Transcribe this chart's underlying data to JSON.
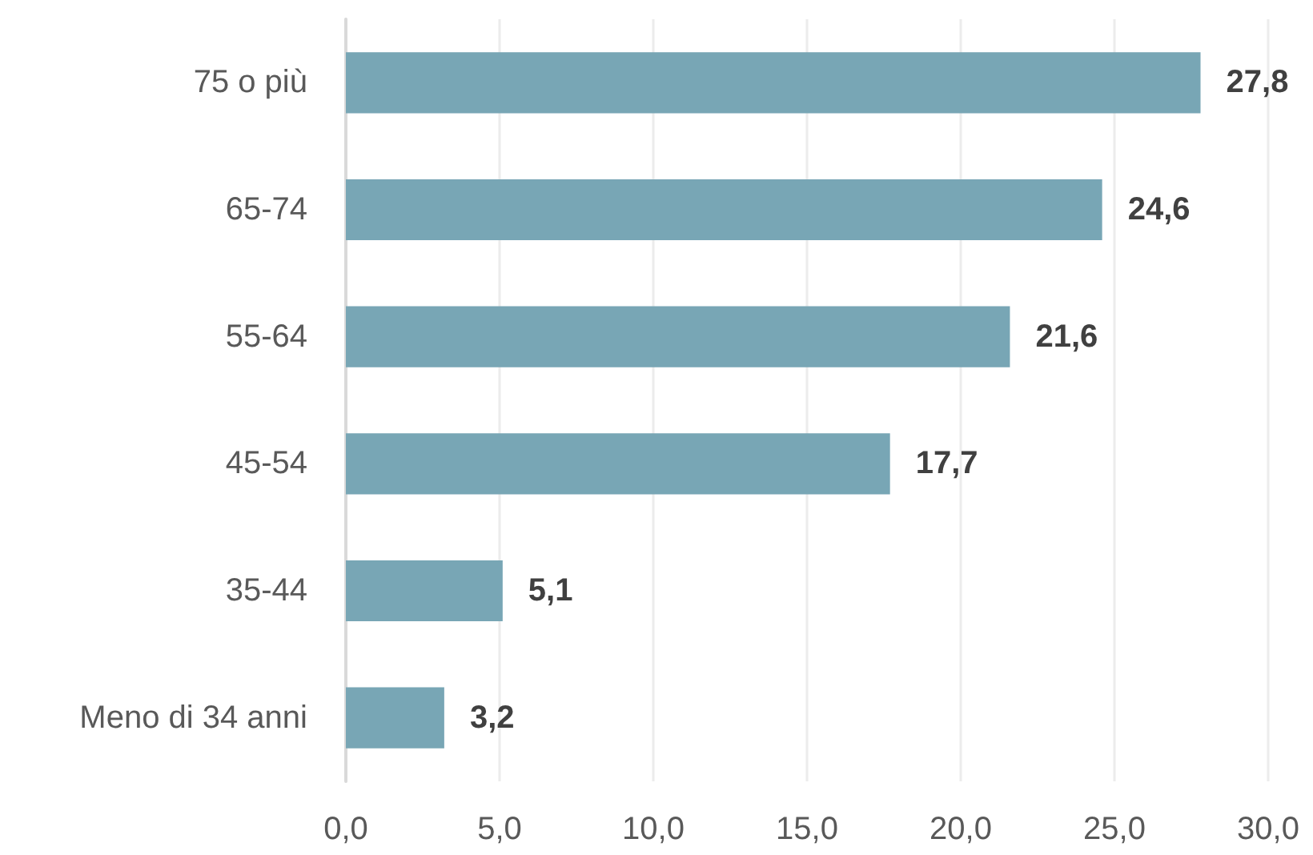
{
  "chart_data": {
    "type": "bar",
    "orientation": "horizontal",
    "categories": [
      "75 o più",
      "65-74",
      "55-64",
      "45-54",
      "35-44",
      "Meno di 34 anni"
    ],
    "values": [
      27.8,
      24.6,
      21.6,
      17.7,
      5.1,
      3.2
    ],
    "value_labels": [
      "27,8",
      "24,6",
      "21,6",
      "17,7",
      "5,1",
      "3,2"
    ],
    "color": "#78a6b5",
    "xlim": [
      0,
      30
    ],
    "xticks": [
      {
        "value": 0,
        "label": "0,0"
      },
      {
        "value": 5,
        "label": "5,0"
      },
      {
        "value": 10,
        "label": "10,0"
      },
      {
        "value": 15,
        "label": "15,0"
      },
      {
        "value": 20,
        "label": "20,0"
      },
      {
        "value": 25,
        "label": "25,0"
      },
      {
        "value": 30,
        "label": "30,0"
      }
    ],
    "grid": "x"
  }
}
